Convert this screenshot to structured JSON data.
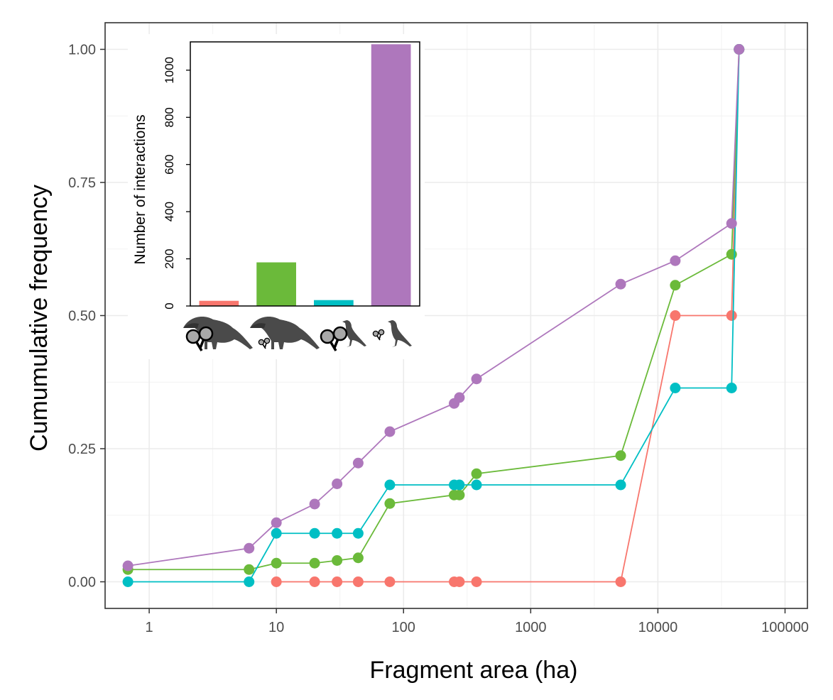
{
  "chart_data": [
    {
      "type": "line",
      "xlabel": "Fragment area (ha)",
      "ylabel": "Cumumulative frequency",
      "x_scale": "log10",
      "xlim": [
        0.45,
        150000
      ],
      "ylim": [
        -0.05,
        1.05
      ],
      "x_ticks": [
        1,
        10,
        100,
        1000,
        10000,
        100000
      ],
      "x_tick_labels": [
        "1",
        "10",
        "100",
        "1000",
        "10000",
        "100000"
      ],
      "y_ticks": [
        0,
        0.25,
        0.5,
        0.75,
        1
      ],
      "y_tick_labels": [
        "0.00",
        "0.25",
        "0.50",
        "0.75",
        "1.00"
      ],
      "grid": true,
      "legend": "none",
      "series": [
        {
          "color": "#F8766D",
          "points": [
            [
              10,
              0
            ],
            [
              20,
              0
            ],
            [
              30,
              0
            ],
            [
              44,
              0
            ],
            [
              78,
              0
            ],
            [
              250,
              0
            ],
            [
              275,
              0
            ],
            [
              375,
              0
            ],
            [
              5100,
              0
            ],
            [
              13700,
              0.5
            ],
            [
              38000,
              0.5
            ],
            [
              43500,
              1
            ]
          ]
        },
        {
          "color": "#6BBA3A",
          "points": [
            [
              0.68,
              0.023
            ],
            [
              6.1,
              0.023
            ],
            [
              10,
              0.035
            ],
            [
              20,
              0.035
            ],
            [
              30,
              0.04
            ],
            [
              44,
              0.045
            ],
            [
              78,
              0.147
            ],
            [
              250,
              0.163
            ],
            [
              275,
              0.163
            ],
            [
              375,
              0.203
            ],
            [
              5100,
              0.237
            ],
            [
              13700,
              0.557
            ],
            [
              38000,
              0.615
            ],
            [
              43500,
              1
            ]
          ]
        },
        {
          "color": "#00BFC4",
          "points": [
            [
              0.68,
              0
            ],
            [
              6.1,
              0
            ],
            [
              10,
              0.091
            ],
            [
              20,
              0.091
            ],
            [
              30,
              0.091
            ],
            [
              44,
              0.091
            ],
            [
              78,
              0.182
            ],
            [
              250,
              0.182
            ],
            [
              275,
              0.182
            ],
            [
              375,
              0.182
            ],
            [
              5100,
              0.182
            ],
            [
              13700,
              0.364
            ],
            [
              38000,
              0.364
            ],
            [
              43500,
              1
            ]
          ]
        },
        {
          "color": "#AE77BC",
          "points": [
            [
              0.68,
              0.03
            ],
            [
              6.1,
              0.063
            ],
            [
              10,
              0.111
            ],
            [
              20,
              0.146
            ],
            [
              30,
              0.184
            ],
            [
              44,
              0.223
            ],
            [
              78,
              0.282
            ],
            [
              250,
              0.335
            ],
            [
              275,
              0.346
            ],
            [
              375,
              0.381
            ],
            [
              5100,
              0.559
            ],
            [
              13700,
              0.603
            ],
            [
              38000,
              0.673
            ],
            [
              43500,
              1
            ]
          ]
        }
      ]
    },
    {
      "type": "bar",
      "ylabel": "Number of interactions",
      "ylim": [
        0,
        1120
      ],
      "y_ticks": [
        0,
        200,
        400,
        600,
        800,
        1000
      ],
      "y_tick_labels": [
        "0",
        "200",
        "400",
        "600",
        "800",
        "1000"
      ],
      "values": [
        22,
        185,
        25,
        1110
      ],
      "colors": [
        "#F8766D",
        "#6BBA3A",
        "#00BFC4",
        "#AE77BC"
      ],
      "category_icons": [
        "large-frugivore-large-seed-icon",
        "large-frugivore-small-seed-icon",
        "small-frugivore-large-seed-icon",
        "small-frugivore-small-seed-icon"
      ]
    }
  ]
}
